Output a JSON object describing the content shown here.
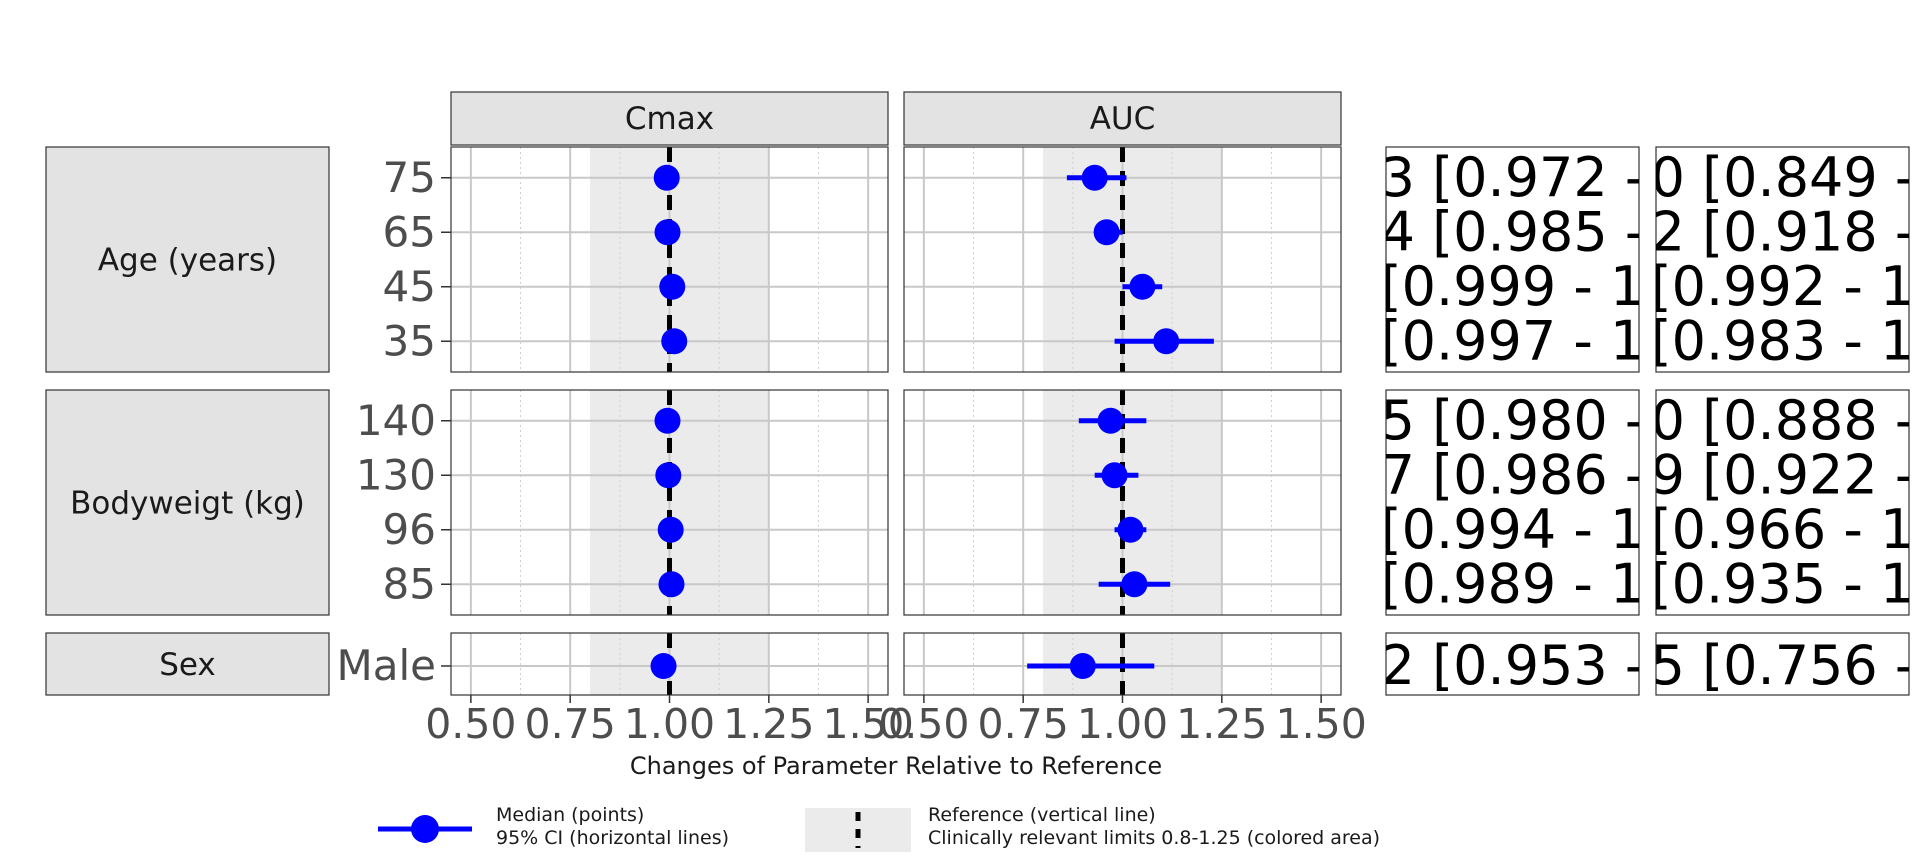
{
  "chart_data": {
    "type": "forest",
    "panels": [
      "Cmax",
      "AUC"
    ],
    "xlabel": "Changes of Parameter Relative to Reference",
    "xlim": [
      0.45,
      1.55
    ],
    "xticks": [
      "0.50",
      "0.75",
      "1.00",
      "1.25",
      "1.50"
    ],
    "reference_line": 1.0,
    "clinical_limits": [
      0.8,
      1.25
    ],
    "colors": {
      "point": "#0000ff",
      "strip": "#e3e3e3",
      "band": "#ebebeb",
      "grid": "#c8c8c8",
      "border": "#333333"
    },
    "groups": [
      {
        "label": "Age (years)",
        "rows": [
          {
            "label": "75",
            "Cmax": {
              "median": 0.993,
              "lo": 0.993,
              "hi": 0.993
            },
            "AUC": {
              "median": 0.93,
              "lo": 0.86,
              "hi": 1.01
            },
            "table": [
              "3 [0.972 - ",
              "0 [0.849 - "
            ]
          },
          {
            "label": "65",
            "Cmax": {
              "median": 0.995,
              "lo": 0.995,
              "hi": 0.995
            },
            "AUC": {
              "median": 0.96,
              "lo": 0.93,
              "hi": 1.0
            },
            "table": [
              "4 [0.985 - ",
              "2 [0.918 - "
            ]
          },
          {
            "label": "45",
            "Cmax": {
              "median": 1.007,
              "lo": 1.005,
              "hi": 1.009
            },
            "AUC": {
              "median": 1.05,
              "lo": 1.0,
              "hi": 1.1
            },
            "table": [
              " [0.999 - 1",
              " [0.992 - 1"
            ]
          },
          {
            "label": "35",
            "Cmax": {
              "median": 1.012,
              "lo": 1.01,
              "hi": 1.014
            },
            "AUC": {
              "median": 1.11,
              "lo": 0.98,
              "hi": 1.23
            },
            "table": [
              " [0.997 - 1",
              " [0.983 - 1"
            ]
          }
        ]
      },
      {
        "label": "Bodyweigt (kg)",
        "rows": [
          {
            "label": "140",
            "Cmax": {
              "median": 0.995,
              "lo": 0.995,
              "hi": 0.995
            },
            "AUC": {
              "median": 0.97,
              "lo": 0.89,
              "hi": 1.06
            },
            "table": [
              "5 [0.980 - ",
              "0 [0.888 - "
            ]
          },
          {
            "label": "130",
            "Cmax": {
              "median": 0.997,
              "lo": 0.997,
              "hi": 0.997
            },
            "AUC": {
              "median": 0.98,
              "lo": 0.93,
              "hi": 1.04
            },
            "table": [
              "7 [0.986 - ",
              "9 [0.922 - "
            ]
          },
          {
            "label": "96",
            "Cmax": {
              "median": 1.003,
              "lo": 1.0,
              "hi": 1.006
            },
            "AUC": {
              "median": 1.02,
              "lo": 0.98,
              "hi": 1.06
            },
            "table": [
              " [0.994 - 1",
              " [0.966 - 1"
            ]
          },
          {
            "label": "85",
            "Cmax": {
              "median": 1.005,
              "lo": 1.0,
              "hi": 1.01
            },
            "AUC": {
              "median": 1.03,
              "lo": 0.94,
              "hi": 1.12
            },
            "table": [
              " [0.989 - 1",
              " [0.935 - 1"
            ]
          }
        ]
      },
      {
        "label": "Sex",
        "rows": [
          {
            "label": "Male",
            "Cmax": {
              "median": 0.985,
              "lo": 0.985,
              "hi": 0.985
            },
            "AUC": {
              "median": 0.9,
              "lo": 0.76,
              "hi": 1.08
            },
            "table": [
              "2 [0.953 - ",
              "5 [0.756 - "
            ]
          }
        ]
      }
    ],
    "legend": {
      "point_line1": "Median (points)",
      "point_line2": "95% CI (horizontal lines)",
      "ref_line1": "Reference (vertical line)",
      "ref_line2": "Clinically relevant limits 0.8-1.25 (colored area)"
    }
  }
}
